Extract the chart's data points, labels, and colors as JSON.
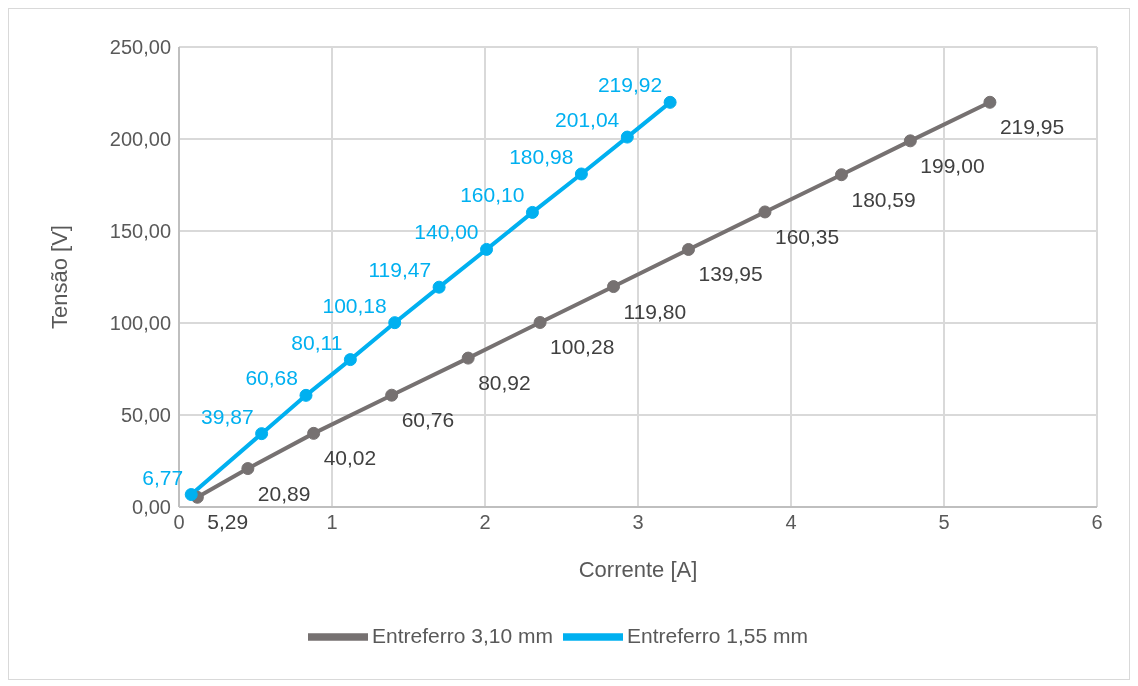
{
  "chart_data": {
    "type": "line",
    "xlabel": "Corrente [A]",
    "ylabel": "Tensão [V]",
    "xlim": [
      0,
      6
    ],
    "xticks": [
      0,
      1,
      2,
      3,
      4,
      5,
      6
    ],
    "ylim": [
      0,
      250
    ],
    "yticks": [
      {
        "value": 0,
        "label": "0,00"
      },
      {
        "value": 50,
        "label": "50,00"
      },
      {
        "value": 100,
        "label": "100,00"
      },
      {
        "value": 150,
        "label": "150,00"
      },
      {
        "value": 200,
        "label": "200,00"
      },
      {
        "value": 250,
        "label": "250,00"
      }
    ],
    "series": [
      {
        "name": "Entreferro 3,10 mm",
        "color": "#767171",
        "x": [
          0.12,
          0.45,
          0.88,
          1.39,
          1.89,
          2.36,
          2.84,
          3.33,
          3.83,
          4.33,
          4.78,
          5.3
        ],
        "values": [
          5.29,
          20.89,
          40.02,
          60.76,
          80.92,
          100.28,
          119.8,
          139.95,
          160.35,
          180.59,
          199.0,
          219.95
        ],
        "value_labels": [
          "5,29",
          "20,89",
          "40,02",
          "60,76",
          "80,92",
          "100,28",
          "119,80",
          "139,95",
          "160,35",
          "180,59",
          "199,00",
          "219,95"
        ]
      },
      {
        "name": "Entreferro 1,55 mm",
        "color": "#00b0f0",
        "x": [
          0.08,
          0.54,
          0.83,
          1.12,
          1.41,
          1.7,
          2.01,
          2.31,
          2.63,
          2.93,
          3.21
        ],
        "values": [
          6.77,
          39.87,
          60.68,
          80.11,
          100.18,
          119.47,
          140.0,
          160.1,
          180.98,
          201.04,
          219.92
        ],
        "value_labels": [
          "6,77",
          "39,87",
          "60,68",
          "80,11",
          "100,18",
          "119,47",
          "140,00",
          "160,10",
          "180,98",
          "201,04",
          "219,92"
        ]
      }
    ],
    "grid": true,
    "legend": "bottom",
    "marker": "circle",
    "line_style": "solid"
  }
}
